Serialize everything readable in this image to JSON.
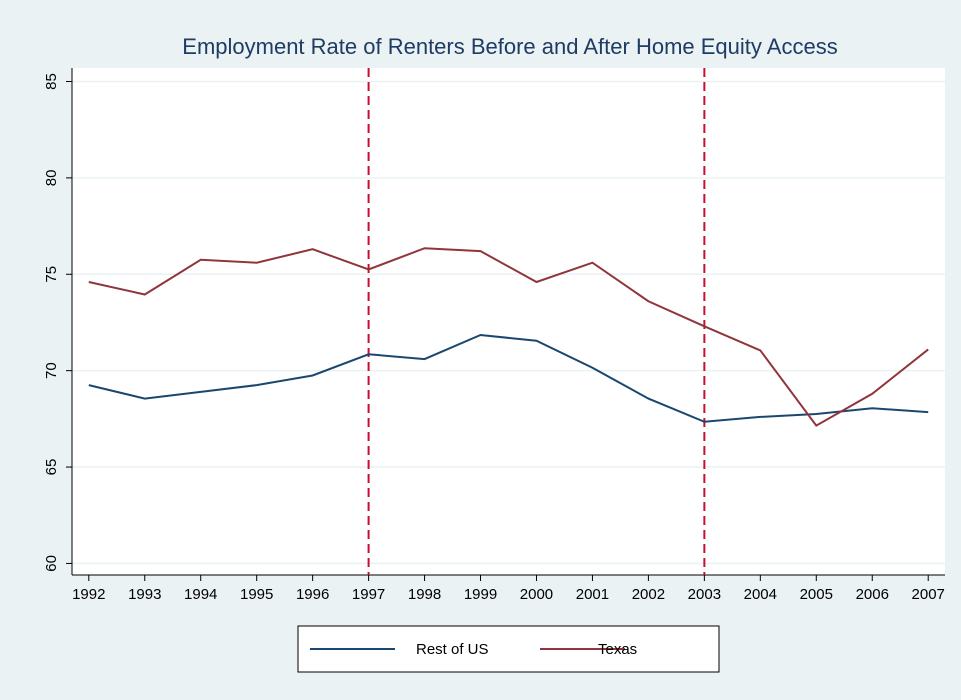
{
  "chart_data": {
    "type": "line",
    "title": "Employment Rate of Renters Before and After Home Equity Access",
    "x": [
      1992,
      1993,
      1994,
      1995,
      1996,
      1997,
      1998,
      1999,
      2000,
      2001,
      2002,
      2003,
      2004,
      2005,
      2006,
      2007
    ],
    "series": [
      {
        "name": "Rest of US",
        "color": "#1a476f",
        "values": [
          69.25,
          68.55,
          68.9,
          69.25,
          69.75,
          70.85,
          70.6,
          71.85,
          71.55,
          70.15,
          68.55,
          67.35,
          67.6,
          67.75,
          68.05,
          67.85
        ]
      },
      {
        "name": "Texas",
        "color": "#90353b",
        "values": [
          74.6,
          73.95,
          75.75,
          75.6,
          76.3,
          75.25,
          76.35,
          76.2,
          74.6,
          75.6,
          73.6,
          72.3,
          71.05,
          67.15,
          68.8,
          71.1
        ]
      }
    ],
    "xlim": [
      1991.7,
      2007.3
    ],
    "ylim": [
      59.4,
      85.7
    ],
    "xticks": [
      1992,
      1993,
      1994,
      1995,
      1996,
      1997,
      1998,
      1999,
      2000,
      2001,
      2002,
      2003,
      2004,
      2005,
      2006,
      2007
    ],
    "yticks": [
      60,
      65,
      70,
      75,
      80,
      85
    ],
    "grid": true,
    "vlines": [
      1997,
      2003
    ],
    "vline_color": "#c8102e",
    "legend": "bottom"
  }
}
